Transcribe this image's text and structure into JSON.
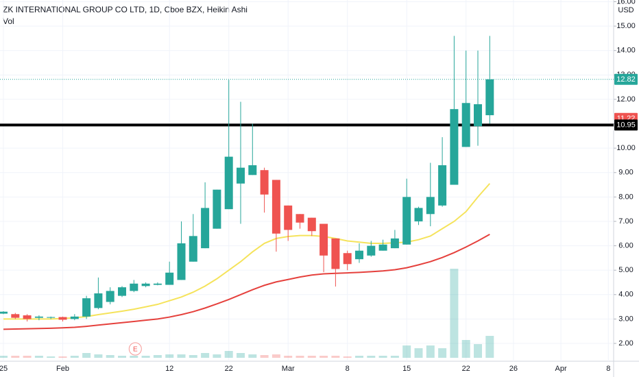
{
  "chart_data": {
    "type": "candlestick",
    "title": "ZK INTERNATIONAL GROUP CO LTD, 1D, Cboe BZX, Heikin Ashi",
    "subtitle": "Vol",
    "currency": "USD",
    "categories": [
      "25",
      null,
      null,
      null,
      null,
      "Feb",
      null,
      null,
      null,
      null,
      null,
      null,
      null,
      null,
      "12",
      null,
      null,
      null,
      null,
      "22",
      null,
      null,
      null,
      null,
      "Mar",
      null,
      null,
      null,
      null,
      "8",
      null,
      null,
      null,
      null,
      "15",
      null,
      null,
      null,
      null,
      "22",
      null,
      null,
      null,
      "26",
      null,
      null,
      null,
      "Apr",
      null,
      null,
      null,
      "8"
    ],
    "open": [
      3.22,
      3.2,
      3.15,
      3.05,
      3.05,
      3.08,
      3.0,
      3.1,
      3.45,
      3.7,
      3.95,
      4.15,
      4.35,
      4.4,
      4.4,
      4.6,
      5.35,
      5.9,
      6.7,
      7.5,
      8.55,
      8.9,
      9.1,
      8.7,
      7.65,
      7.3,
      7.15,
      6.9,
      6.3,
      5.7,
      5.45,
      5.6,
      5.8,
      5.9,
      6.05,
      7.0,
      7.3,
      7.65,
      8.5,
      10.05,
      10.9,
      11.35,
      null,
      null,
      null,
      null,
      null,
      null,
      null,
      null,
      null,
      null
    ],
    "high": [
      3.32,
      3.25,
      3.2,
      3.15,
      3.1,
      3.1,
      3.2,
      3.95,
      4.7,
      4.3,
      4.35,
      4.6,
      4.5,
      4.5,
      5.35,
      7.0,
      7.3,
      8.6,
      8.3,
      12.8,
      11.9,
      11.0,
      9.2,
      8.7,
      7.65,
      7.3,
      7.15,
      6.9,
      6.3,
      5.8,
      6.1,
      6.2,
      6.25,
      6.65,
      8.75,
      7.6,
      9.4,
      10.45,
      14.6,
      14.0,
      14.0,
      14.6,
      null,
      null,
      null,
      null,
      null,
      null,
      null,
      null,
      null,
      null
    ],
    "low": [
      3.2,
      3.0,
      2.9,
      2.95,
      3.0,
      2.9,
      2.95,
      3.0,
      3.4,
      3.6,
      3.9,
      4.1,
      4.3,
      4.38,
      4.4,
      4.6,
      5.35,
      5.9,
      6.7,
      7.5,
      6.9,
      8.9,
      7.36,
      5.76,
      6.2,
      6.7,
      6.4,
      4.92,
      4.33,
      5.0,
      5.3,
      5.55,
      5.8,
      5.9,
      6.05,
      6.85,
      6.8,
      7.6,
      8.5,
      10.05,
      10.1,
      11.0,
      null,
      null,
      null,
      null,
      null,
      null,
      null,
      null,
      null,
      null
    ],
    "close": [
      3.3,
      3.05,
      3.0,
      3.1,
      3.08,
      2.97,
      3.1,
      3.85,
      4.05,
      4.15,
      4.3,
      4.45,
      4.45,
      4.45,
      4.9,
      6.1,
      6.4,
      7.55,
      8.3,
      9.65,
      9.2,
      9.3,
      8.1,
      6.5,
      6.65,
      6.95,
      6.6,
      5.6,
      5.05,
      5.25,
      5.8,
      6.0,
      6.05,
      6.3,
      8.0,
      7.55,
      8.0,
      9.3,
      11.6,
      11.85,
      11.8,
      12.82,
      null,
      null,
      null,
      null,
      null,
      null,
      null,
      null,
      null,
      null
    ],
    "up_color": "#26a69a",
    "down_color": "#ef5350",
    "series": [
      {
        "color": "#f5e35b",
        "values": [
          3.0,
          3.0,
          3.0,
          3.0,
          3.0,
          3.02,
          3.05,
          3.1,
          3.18,
          3.25,
          3.32,
          3.4,
          3.5,
          3.6,
          3.75,
          3.9,
          4.1,
          4.35,
          4.65,
          5.0,
          5.35,
          5.75,
          6.1,
          6.3,
          6.38,
          6.42,
          6.42,
          6.38,
          6.3,
          6.2,
          6.15,
          6.1,
          6.1,
          6.12,
          6.15,
          6.25,
          6.4,
          6.7,
          7.0,
          7.4,
          8.0,
          8.55,
          null,
          null,
          null,
          null,
          null,
          null,
          null,
          null,
          null,
          null
        ]
      },
      {
        "color": "#e5403c",
        "values": [
          2.58,
          2.59,
          2.6,
          2.61,
          2.62,
          2.64,
          2.66,
          2.7,
          2.75,
          2.8,
          2.85,
          2.9,
          2.95,
          3.0,
          3.08,
          3.18,
          3.3,
          3.45,
          3.62,
          3.8,
          4.0,
          4.2,
          4.38,
          4.52,
          4.62,
          4.72,
          4.8,
          4.85,
          4.87,
          4.89,
          4.91,
          4.94,
          4.97,
          5.02,
          5.1,
          5.22,
          5.35,
          5.52,
          5.72,
          5.95,
          6.2,
          6.47,
          null,
          null,
          null,
          null,
          null,
          null,
          null,
          null,
          null,
          null
        ]
      }
    ],
    "volume": [
      3,
      3,
      3,
      3,
      2,
      2,
      3,
      7,
      5,
      4,
      3,
      3,
      3,
      4,
      5,
      5,
      4,
      7,
      5,
      10,
      7,
      5,
      4,
      5,
      3,
      3,
      3,
      3,
      3,
      2,
      3,
      3,
      3,
      3,
      18,
      14,
      18,
      14,
      130,
      26,
      20,
      32,
      null,
      null,
      null,
      null,
      null,
      null,
      null,
      null,
      null,
      null
    ],
    "volume_lim": [
      0,
      150
    ],
    "events": [
      null,
      null,
      null,
      null,
      null,
      null,
      null,
      null,
      null,
      null,
      null,
      "E",
      null,
      null,
      null,
      null,
      null,
      null,
      null,
      null,
      null,
      null,
      null,
      null,
      null,
      null,
      null,
      null,
      null,
      null,
      null,
      null,
      null,
      null,
      null,
      null,
      null,
      null,
      null,
      null,
      null,
      null,
      null,
      null,
      null,
      null,
      null,
      null,
      null,
      null,
      null,
      null
    ],
    "ylim": [
      1.27,
      16.07
    ],
    "yticks": [
      {
        "value": 2,
        "label": "2.00"
      },
      {
        "value": 3,
        "label": "3.00"
      },
      {
        "value": 4,
        "label": "4.00"
      },
      {
        "value": 5,
        "label": "5.00"
      },
      {
        "value": 6,
        "label": "6.00"
      },
      {
        "value": 7,
        "label": "7.00"
      },
      {
        "value": 8,
        "label": "8.00"
      },
      {
        "value": 9,
        "label": "9.00"
      },
      {
        "value": 10,
        "label": "10.00"
      },
      {
        "value": 11,
        "label": "11.00"
      },
      {
        "value": 12,
        "label": "12.00"
      },
      {
        "value": 13,
        "label": "13.00"
      },
      {
        "value": 14,
        "label": "14.00"
      },
      {
        "value": 15,
        "label": "15.00"
      },
      {
        "value": 16,
        "label": "16.00"
      }
    ],
    "grid": true,
    "horizontal_line": {
      "value": 10.95,
      "color": "#000000"
    },
    "price_labels": [
      {
        "value": 12.82,
        "color": "#26a69a"
      },
      {
        "value": 11.22,
        "color": "#ef5350"
      },
      {
        "value": 10.95,
        "color": "#000000"
      }
    ]
  }
}
